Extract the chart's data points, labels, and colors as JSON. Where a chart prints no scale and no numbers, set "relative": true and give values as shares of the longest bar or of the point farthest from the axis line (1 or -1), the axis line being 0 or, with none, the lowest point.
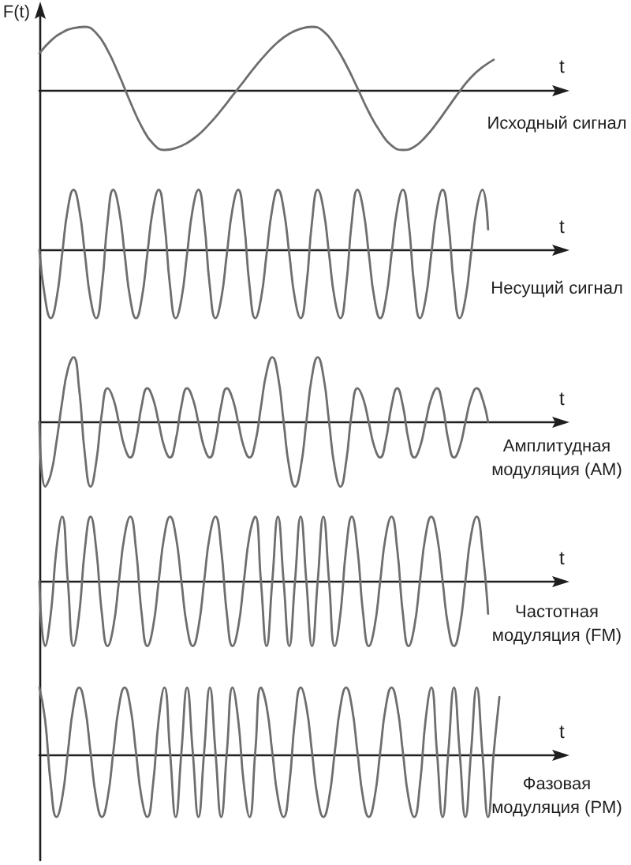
{
  "chart_data": [
    {
      "type": "line",
      "title": "Исходный сигнал",
      "xlabel": "t",
      "ylabel": "F(t)",
      "relative": true,
      "color": "#6e6e6e",
      "categories": [
        null,
        null,
        null,
        null,
        null,
        null,
        null,
        null,
        null,
        null,
        null,
        null,
        null,
        null,
        null,
        null,
        null,
        null,
        null,
        null,
        null,
        null,
        null,
        null,
        null,
        null,
        null,
        null,
        null,
        null,
        null,
        null,
        null,
        null,
        null,
        null,
        null,
        null,
        null,
        null,
        null,
        null,
        null,
        null,
        null,
        null,
        null
      ],
      "values": [
        0.58,
        0.78,
        0.91,
        0.98,
        1.0,
        0.9,
        0.63,
        0.24,
        -0.19,
        -0.58,
        -0.85,
        -0.95,
        -0.92,
        -0.84,
        -0.71,
        -0.53,
        -0.32,
        -0.09,
        0.14,
        0.37,
        0.58,
        0.76,
        0.89,
        0.97,
        1.0,
        0.93,
        0.71,
        0.4,
        0.03,
        -0.35,
        -0.66,
        -0.88,
        -0.95,
        -0.9,
        -0.74,
        -0.52,
        -0.27,
        -0.02,
        0.2,
        0.36,
        0.48,
        null,
        null,
        null,
        null,
        null,
        null
      ]
    },
    {
      "type": "line",
      "title": "Несущий сигнал",
      "xlabel": "t",
      "relative": true,
      "color": "#6e6e6e",
      "categories": [
        null,
        null,
        null,
        null,
        null,
        null,
        null,
        null,
        null,
        null,
        null,
        null,
        null,
        null,
        null,
        null,
        null,
        null,
        null,
        null,
        null,
        null,
        null,
        null,
        null,
        null,
        null,
        null,
        null,
        null,
        null,
        null,
        null,
        null,
        null,
        null,
        null,
        null,
        null,
        null,
        null,
        null,
        null,
        null,
        null,
        null,
        null,
        null,
        null,
        null,
        null,
        null,
        null,
        null,
        null,
        null,
        null,
        null,
        null,
        null,
        null,
        null,
        null,
        null,
        null,
        null,
        null,
        null,
        null,
        null,
        null,
        null,
        null,
        null,
        null,
        null,
        null,
        null,
        null,
        null,
        null,
        null,
        null,
        null,
        null,
        null,
        null,
        null,
        null,
        null,
        null,
        null,
        null
      ],
      "values": [
        0,
        -0.71,
        -1,
        -0.72,
        -0.06,
        0.6,
        0.88,
        0.6,
        -0.06,
        -0.72,
        -1,
        -0.53,
        0.41,
        0.88,
        0.6,
        -0.06,
        -0.72,
        -1,
        -0.72,
        -0.06,
        0.6,
        0.88,
        0.41,
        -0.53,
        -1,
        -0.72,
        -0.06,
        0.6,
        0.88,
        0.41,
        -0.53,
        -1,
        -0.72,
        -0.06,
        0.6,
        0.88,
        0.41,
        -0.53,
        -1,
        -0.72,
        -0.06,
        0.6,
        0.88,
        0.6,
        -0.06,
        -0.72,
        -1,
        -0.53,
        0.41,
        0.88,
        0.6,
        -0.06,
        -0.72,
        -1,
        -0.53,
        0.41,
        0.88,
        0.6,
        -0.06,
        -0.72,
        -1,
        -0.72,
        -0.06,
        0.6,
        0.88,
        0.41,
        -0.53,
        -1,
        -0.72,
        -0.06,
        0.6,
        0.88,
        0.41,
        -0.53,
        -1,
        -0.72,
        -0.06,
        0.6,
        0.88,
        0.3,
        null,
        null,
        null,
        null,
        null,
        null,
        null,
        null,
        null,
        null,
        null,
        null,
        null
      ]
    },
    {
      "type": "line",
      "title": "Амплитудная модуляция (AM)",
      "xlabel": "t",
      "relative": true,
      "color": "#6e6e6e",
      "categories": [
        null,
        null,
        null,
        null,
        null,
        null,
        null,
        null,
        null,
        null,
        null,
        null,
        null,
        null,
        null,
        null,
        null,
        null,
        null,
        null,
        null,
        null,
        null,
        null,
        null,
        null,
        null,
        null,
        null,
        null,
        null,
        null,
        null,
        null,
        null,
        null,
        null,
        null,
        null,
        null,
        null,
        null,
        null,
        null,
        null,
        null,
        null,
        null,
        null,
        null,
        null,
        null,
        null,
        null,
        null,
        null,
        null,
        null,
        null,
        null,
        null,
        null,
        null,
        null,
        null,
        null,
        null,
        null,
        null,
        null,
        null,
        null,
        null,
        null,
        null,
        null,
        null,
        null,
        null,
        null,
        null,
        null,
        null,
        null,
        null,
        null,
        null,
        null,
        null,
        null,
        null,
        null,
        null
      ],
      "values": [
        0,
        -1,
        -0.81,
        -0.31,
        0.31,
        0.81,
        1,
        0.5,
        -0.5,
        -1,
        -0.62,
        0.14,
        0.52,
        0.36,
        -0.01,
        -0.39,
        -0.55,
        -0.28,
        0.25,
        0.52,
        0.36,
        -0.01,
        -0.39,
        -0.55,
        -0.28,
        0.25,
        0.52,
        0.36,
        -0.01,
        -0.39,
        -0.55,
        -0.28,
        0.25,
        0.52,
        0.36,
        -0.01,
        -0.39,
        -0.55,
        -0.32,
        0.23,
        0.77,
        1,
        0.71,
        0,
        -0.71,
        -1,
        -0.71,
        0,
        0.71,
        1,
        0.71,
        0,
        -0.71,
        -1,
        -0.62,
        0.14,
        0.52,
        0.36,
        -0.01,
        -0.39,
        -0.55,
        -0.28,
        0.25,
        0.52,
        0.25,
        -0.28,
        -0.55,
        -0.39,
        -0.01,
        0.36,
        0.52,
        0.25,
        -0.28,
        -0.55,
        -0.39,
        -0.01,
        0.36,
        0.52,
        0.36,
        0,
        null,
        null,
        null,
        null,
        null,
        null,
        null,
        null,
        null,
        null,
        null,
        null,
        null
      ]
    },
    {
      "type": "line",
      "title": "Частотная модуляция (FM)",
      "xlabel": "t",
      "relative": true,
      "color": "#6e6e6e",
      "categories": [
        null,
        null,
        null,
        null,
        null,
        null,
        null,
        null,
        null,
        null,
        null,
        null,
        null,
        null,
        null,
        null,
        null,
        null,
        null,
        null,
        null,
        null,
        null,
        null,
        null,
        null,
        null,
        null,
        null,
        null,
        null,
        null,
        null,
        null,
        null,
        null,
        null,
        null,
        null,
        null,
        null,
        null,
        null,
        null,
        null,
        null,
        null,
        null,
        null,
        null,
        null,
        null,
        null,
        null,
        null,
        null,
        null,
        null,
        null,
        null,
        null,
        null,
        null,
        null,
        null,
        null,
        null,
        null,
        null,
        null,
        null,
        null,
        null,
        null,
        null,
        null,
        null,
        null,
        null,
        null,
        null,
        null,
        null,
        null,
        null,
        null,
        null,
        null,
        null,
        null,
        null,
        null,
        null
      ],
      "values": [
        0,
        -1,
        -0.5,
        0.5,
        1,
        0,
        -1,
        -0.5,
        0.5,
        1,
        0.5,
        -0.5,
        -1,
        -0.71,
        0,
        0.71,
        1,
        0.5,
        -0.5,
        -1,
        -0.71,
        0,
        0.71,
        1,
        0.71,
        0,
        -0.71,
        -1,
        -0.71,
        0,
        0.71,
        1,
        0.5,
        -0.5,
        -1,
        -0.71,
        0,
        0.71,
        1,
        0,
        -1,
        0,
        1,
        0,
        -1,
        0,
        1,
        0,
        -1,
        0,
        1,
        0,
        -1,
        -0.5,
        0.5,
        1,
        0.5,
        -0.5,
        -1,
        -0.71,
        0,
        0.71,
        1,
        0.5,
        -0.5,
        -1,
        -0.71,
        0,
        0.71,
        1,
        0.71,
        0,
        -0.71,
        -1,
        -0.71,
        0,
        0.71,
        1,
        0.5,
        -0.5,
        null,
        null,
        null,
        null,
        null,
        null,
        null,
        null,
        null,
        null,
        null,
        null,
        null
      ]
    },
    {
      "type": "line",
      "title": "Фазовая модуляция (PM)",
      "xlabel": "t",
      "relative": true,
      "color": "#6e6e6e",
      "categories": [
        null,
        null,
        null,
        null,
        null,
        null,
        null,
        null,
        null,
        null,
        null,
        null,
        null,
        null,
        null,
        null,
        null,
        null,
        null,
        null,
        null,
        null,
        null,
        null,
        null,
        null,
        null,
        null,
        null,
        null,
        null,
        null,
        null,
        null,
        null,
        null,
        null,
        null,
        null,
        null,
        null,
        null,
        null,
        null,
        null,
        null,
        null,
        null,
        null,
        null,
        null,
        null,
        null,
        null,
        null,
        null,
        null,
        null,
        null,
        null,
        null,
        null,
        null,
        null,
        null,
        null,
        null,
        null,
        null,
        null,
        null,
        null,
        null,
        null,
        null,
        null,
        null,
        null,
        null,
        null,
        null,
        null,
        null,
        null,
        null,
        null,
        null,
        null,
        null,
        null,
        null,
        null,
        null
      ],
      "values": [
        1,
        0.52,
        -0.44,
        -0.92,
        -0.64,
        0.04,
        0.72,
        1,
        0.72,
        0.04,
        -0.64,
        -0.92,
        -0.64,
        0.04,
        0.72,
        1,
        0.72,
        0.04,
        -0.64,
        -0.92,
        -0.44,
        0.52,
        1,
        0.04,
        -0.92,
        0.04,
        1,
        0.04,
        -0.92,
        0.04,
        1,
        0.04,
        -0.92,
        0.04,
        1,
        0.52,
        -0.44,
        -0.92,
        0.04,
        1,
        0.72,
        0.04,
        -0.64,
        -0.92,
        -0.44,
        0.52,
        1,
        0.72,
        0.04,
        -0.64,
        -0.92,
        -0.64,
        0.04,
        0.72,
        1,
        0.72,
        0.04,
        -0.64,
        -0.92,
        -0.64,
        0.04,
        0.72,
        1,
        0.72,
        0.04,
        -0.64,
        -0.92,
        -0.44,
        0.52,
        1,
        0.04,
        -0.92,
        0.04,
        1,
        0.04,
        -0.92,
        0.04,
        1,
        0.04,
        -0.92,
        0.04,
        0.86,
        null,
        null,
        null,
        null,
        null,
        null,
        null,
        null,
        null,
        null,
        null
      ]
    }
  ]
}
